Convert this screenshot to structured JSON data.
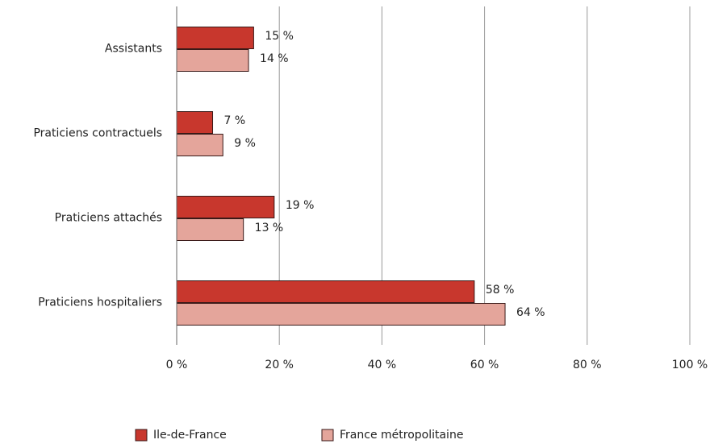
{
  "chart_data": {
    "type": "hbar",
    "categories": [
      "Assistants",
      "Praticiens contractuels",
      "Praticiens attachés",
      "Praticiens hospitaliers"
    ],
    "series": [
      {
        "name": "Ile-de-France",
        "color": "#c8372d",
        "values": [
          15,
          7,
          19,
          58
        ],
        "value_labels": [
          "15 %",
          "7 %",
          "19 %",
          "58 %"
        ]
      },
      {
        "name": "France métropolitaine",
        "color": "#e4a59b",
        "values": [
          14,
          9,
          13,
          64
        ],
        "value_labels": [
          "14 %",
          "9 %",
          "13 %",
          "64 %"
        ]
      }
    ],
    "xlim": [
      0,
      100
    ],
    "xticks": [
      {
        "value": 0,
        "label": "0 %"
      },
      {
        "value": 20,
        "label": "20 %"
      },
      {
        "value": 40,
        "label": "40 %"
      },
      {
        "value": 60,
        "label": "60 %"
      },
      {
        "value": 80,
        "label": "80 %"
      },
      {
        "value": 100,
        "label": "100 %"
      }
    ],
    "grid": true,
    "legend": "bottom"
  }
}
